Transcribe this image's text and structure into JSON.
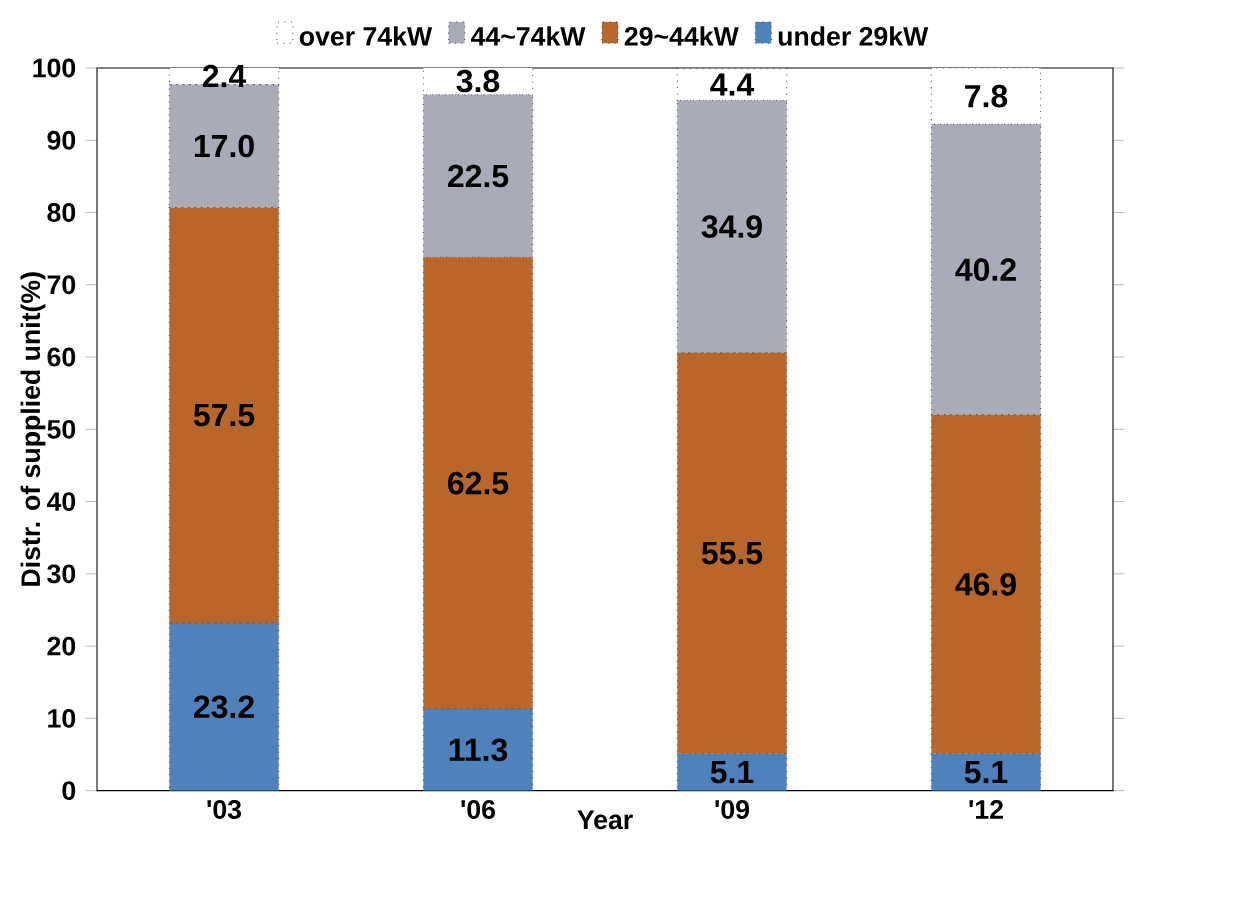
{
  "chart_data": {
    "type": "bar",
    "stacked": true,
    "xlabel": "Year",
    "ylabel": "Distr. of supplied unit(%)",
    "categories": [
      "'03",
      "'06",
      "'09",
      "'12"
    ],
    "ylim": [
      0,
      100
    ],
    "yticks": [
      0,
      10,
      20,
      30,
      40,
      50,
      60,
      70,
      80,
      90,
      100
    ],
    "legend": "top",
    "series": [
      {
        "name": "under 29kW",
        "color": "#4f81bd",
        "values": [
          23.2,
          11.3,
          5.1,
          5.1
        ],
        "value_labels": [
          "23.2",
          "11.3",
          "5.1",
          "5.1"
        ]
      },
      {
        "name": "29~44kW",
        "color": "#b8662a",
        "values": [
          57.5,
          62.5,
          55.5,
          46.9
        ],
        "value_labels": [
          "57.5",
          "62.5",
          "55.5",
          "46.9"
        ]
      },
      {
        "name": "44~74kW",
        "color": "#a9abb8",
        "values": [
          17.0,
          22.5,
          34.9,
          40.2
        ],
        "value_labels": [
          "17.0",
          "22.5",
          "34.9",
          "40.2"
        ]
      },
      {
        "name": "over 74kW",
        "color": "#ffffff",
        "values": [
          2.4,
          3.8,
          4.4,
          7.8
        ],
        "value_labels": [
          "2.4",
          "3.8",
          "4.4",
          "7.8"
        ]
      }
    ]
  }
}
